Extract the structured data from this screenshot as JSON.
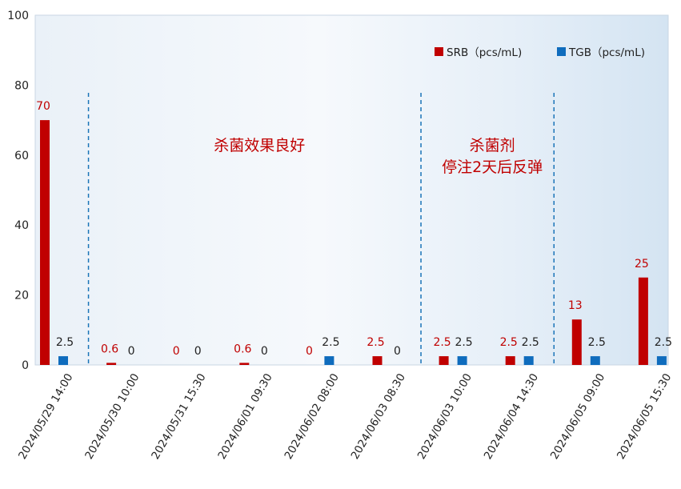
{
  "chart_data": {
    "type": "bar",
    "categories": [
      "2024/05/29 14:00",
      "2024/05/30 10:00",
      "2024/05/31 15:30",
      "2024/06/01 09:30",
      "2024/06/02 08:00",
      "2024/06/03 08:30",
      "2024/06/03 10:00",
      "2024/06/04 14:30",
      "2024/06/05 09:00",
      "2024/06/05 15:30"
    ],
    "series": [
      {
        "name": "SRB（pcs/mL)",
        "color": "#c00000",
        "values": [
          70,
          0.6,
          0,
          0.6,
          0,
          2.5,
          2.5,
          2.5,
          13,
          25
        ],
        "labels": [
          "70",
          "0.6",
          "0",
          "0.6",
          "0",
          "2.5",
          "2.5",
          "2.5",
          "13",
          "25"
        ]
      },
      {
        "name": "TGB（pcs/mL)",
        "color": "#0f6cbd",
        "values": [
          2.5,
          0,
          0,
          0,
          2.5,
          0,
          2.5,
          2.5,
          2.5,
          2.5
        ],
        "labels": [
          "2.5",
          "0",
          "0",
          "0",
          "2.5",
          "0",
          "2.5",
          "2.5",
          "2.5",
          "2.5"
        ]
      }
    ],
    "ylim": [
      0,
      100
    ],
    "yticks": [
      "0",
      "20",
      "40",
      "60",
      "80",
      "100"
    ],
    "legend_position": "top-right",
    "separators_after_category": [
      0,
      5,
      7
    ],
    "annotations": [
      {
        "text": "杀菌效果良好",
        "region_between": [
          1,
          5
        ]
      },
      {
        "text": "杀菌剂",
        "region_between": [
          6,
          7
        ]
      },
      {
        "text": "停注2天后反弹",
        "region_between": [
          6,
          7
        ]
      }
    ]
  }
}
